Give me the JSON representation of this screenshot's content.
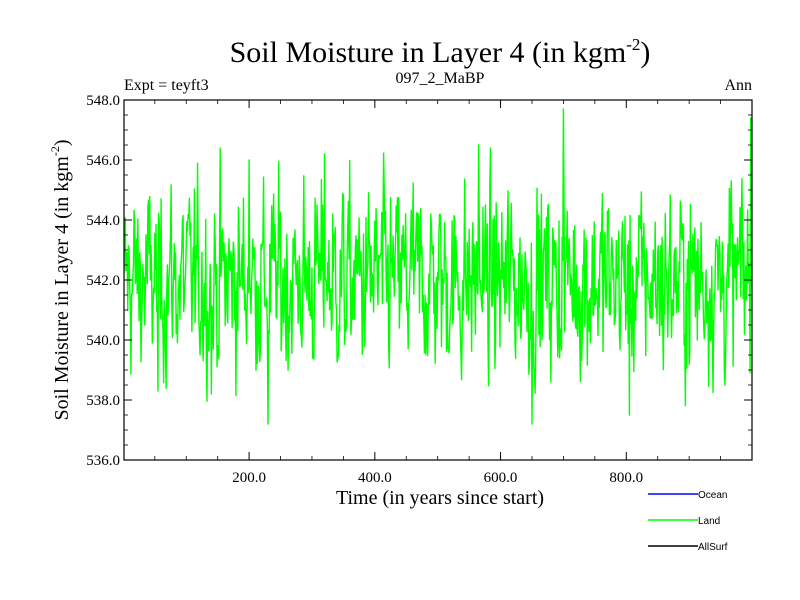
{
  "chart_data": {
    "type": "line",
    "title": "Soil Moisture in Layer 4 (in kgm",
    "title_sup": "-2",
    "title_close": ")",
    "subtitle_left": "Expt = teyft3",
    "subtitle_center": "097_2_MaBP",
    "subtitle_right": "Ann",
    "xlabel": "Time (in years since start)",
    "ylabel": "Soil Moisture in Layer 4 (in kgm",
    "ylabel_sup": "-2",
    "ylabel_close": ")",
    "xlim": [
      1,
      1000
    ],
    "ylim": [
      536.0,
      548.0
    ],
    "x_ticks": [
      200,
      400,
      600,
      800
    ],
    "x_tick_labels": [
      "200.0",
      "400.0",
      "600.0",
      "800.0"
    ],
    "y_ticks": [
      536,
      538,
      540,
      542,
      544,
      546,
      548
    ],
    "y_tick_labels": [
      "536.0",
      "538.0",
      "540.0",
      "542.0",
      "544.0",
      "546.0",
      "548.0"
    ],
    "series": [
      {
        "name": "Land",
        "color": "#00ff00",
        "mean": 542.0,
        "x_start": 1,
        "x_end": 1000,
        "sample_points": [
          {
            "x": 1,
            "y": 542.2
          },
          {
            "x": 55,
            "y": 538.3
          },
          {
            "x": 140,
            "y": 538.2
          },
          {
            "x": 200,
            "y": 546.0
          },
          {
            "x": 230,
            "y": 537.2
          },
          {
            "x": 320,
            "y": 546.2
          },
          {
            "x": 565,
            "y": 546.5
          },
          {
            "x": 650,
            "y": 537.2
          },
          {
            "x": 700,
            "y": 547.7
          },
          {
            "x": 805,
            "y": 537.5
          },
          {
            "x": 998,
            "y": 547.4
          }
        ]
      }
    ],
    "legend": [
      {
        "label": "Ocean",
        "color": "#0000ff"
      },
      {
        "label": "Land",
        "color": "#00ff00"
      },
      {
        "label": "AllSurf",
        "color": "#000000"
      }
    ]
  }
}
